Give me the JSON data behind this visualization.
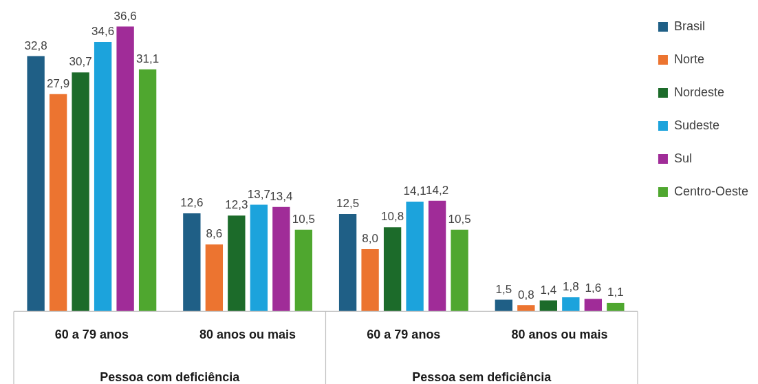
{
  "chart_data": {
    "type": "bar",
    "categories": [
      "60 a 79 anos",
      "80 anos ou mais",
      "60 a 79 anos",
      "80 anos ou mais"
    ],
    "series": [
      {
        "name": "Brasil",
        "color": "#1f5f86",
        "values": [
          32.8,
          12.6,
          12.5,
          1.5
        ],
        "value_labels": [
          "32,8",
          "12,6",
          "12,5",
          "1,5"
        ]
      },
      {
        "name": "Norte",
        "color": "#ec7430",
        "values": [
          27.9,
          8.6,
          8.0,
          0.8
        ],
        "value_labels": [
          "27,9",
          "8,6",
          "8,0",
          "0,8"
        ]
      },
      {
        "name": "Nordeste",
        "color": "#1c6b2a",
        "values": [
          30.7,
          12.3,
          10.8,
          1.4
        ],
        "value_labels": [
          "30,7",
          "12,3",
          "10,8",
          "1,4"
        ]
      },
      {
        "name": "Sudeste",
        "color": "#1ca3dc",
        "values": [
          34.6,
          13.7,
          14.1,
          1.8
        ],
        "value_labels": [
          "34,6",
          "13,7",
          "14,1",
          "1,8"
        ]
      },
      {
        "name": "Sul",
        "color": "#a02c98",
        "values": [
          36.6,
          13.4,
          14.2,
          1.6
        ],
        "value_labels": [
          "36,6",
          "13,4",
          "14,2",
          "1,6"
        ]
      },
      {
        "name": "Centro-Oeste",
        "color": "#4fa72f",
        "values": [
          31.1,
          10.5,
          10.5,
          1.1
        ],
        "value_labels": [
          "31,1",
          "10,5",
          "10,5",
          "1,1"
        ]
      }
    ],
    "annotations": [
      "Pessoa com deficiência",
      "Pessoa sem deficiência"
    ],
    "tick_labels": "x",
    "grid": false,
    "legend": "top right"
  }
}
